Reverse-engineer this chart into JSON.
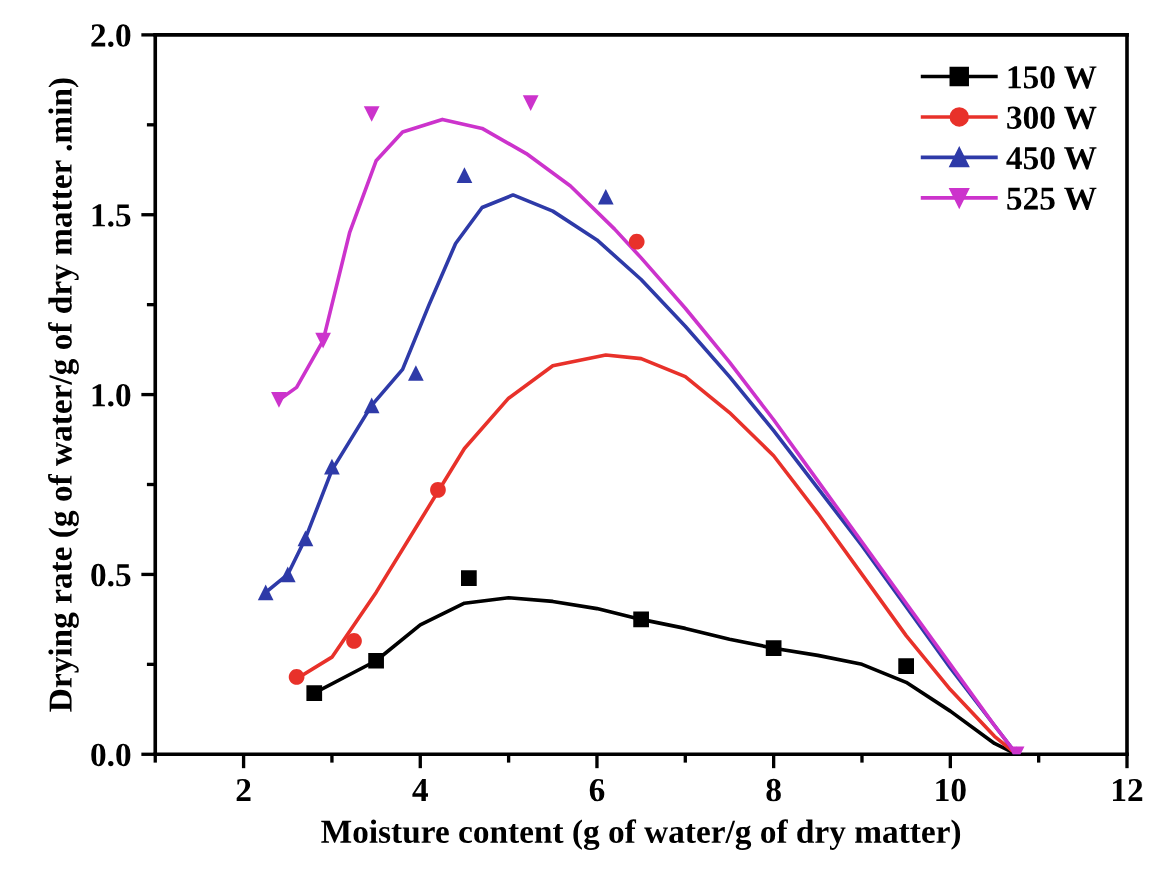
{
  "chart_data": {
    "type": "scatter",
    "xlabel": "Moisture content (g of water/g of dry matter)",
    "ylabel": "Drying rate (g of water/g of dry matter .min)",
    "xlim": [
      1,
      12
    ],
    "xticks": [
      2,
      4,
      6,
      8,
      10,
      12
    ],
    "ylim": [
      0,
      2.0
    ],
    "yticks": [
      {
        "value": 0,
        "label": "0.0"
      },
      {
        "value": 0.5,
        "label": "0.5"
      },
      {
        "value": 1.0,
        "label": "1.0"
      },
      {
        "value": 1.5,
        "label": "1.5"
      },
      {
        "value": 2.0,
        "label": "2.0"
      }
    ],
    "legend": "top right",
    "grid": false,
    "series": [
      {
        "name": "150 W",
        "marker": "square",
        "color": "#000000",
        "x": [
          2.8,
          3.5,
          4.55,
          6.5,
          8.0,
          9.5
        ],
        "values": [
          0.17,
          0.26,
          0.49,
          0.375,
          0.295,
          0.245
        ]
      },
      {
        "name": "300 W",
        "marker": "circle",
        "color": "#e8312a",
        "x": [
          2.6,
          3.25,
          4.2,
          6.45
        ],
        "values": [
          0.215,
          0.315,
          0.735,
          1.425
        ]
      },
      {
        "name": "450 W",
        "marker": "triangle",
        "color": "#2e3aa8",
        "x": [
          2.25,
          2.5,
          2.7,
          3.0,
          3.45,
          3.95,
          4.5,
          6.1,
          10.75
        ],
        "values": [
          0.45,
          0.5,
          0.6,
          0.8,
          0.97,
          1.06,
          1.61,
          1.55,
          0.0
        ]
      },
      {
        "name": "525 W",
        "marker": "triangle_down",
        "color": "#cc33cc",
        "x": [
          2.4,
          2.9,
          3.45,
          5.25,
          10.75
        ],
        "values": [
          0.985,
          1.15,
          1.78,
          1.81,
          0.0
        ]
      },
      {
        "type": "line",
        "color": "#000000",
        "x": [
          2.8,
          3.5,
          4.0,
          4.5,
          5.0,
          5.5,
          6.0,
          6.5,
          7.0,
          7.5,
          8.0,
          8.5,
          9.0,
          9.5,
          10.0,
          10.5,
          10.75
        ],
        "values": [
          0.17,
          0.26,
          0.36,
          0.42,
          0.435,
          0.425,
          0.405,
          0.375,
          0.35,
          0.32,
          0.295,
          0.275,
          0.25,
          0.2,
          0.12,
          0.03,
          0.0
        ]
      },
      {
        "type": "line",
        "color": "#e8312a",
        "x": [
          2.6,
          3.0,
          3.5,
          4.0,
          4.5,
          5.0,
          5.5,
          6.1,
          6.5,
          7.0,
          7.5,
          8.0,
          8.5,
          9.0,
          9.5,
          10.0,
          10.5,
          10.75
        ],
        "values": [
          0.21,
          0.27,
          0.45,
          0.65,
          0.85,
          0.99,
          1.08,
          1.11,
          1.1,
          1.05,
          0.95,
          0.83,
          0.67,
          0.5,
          0.33,
          0.18,
          0.05,
          0.0
        ]
      },
      {
        "type": "line",
        "color": "#2e3aa8",
        "x": [
          2.25,
          2.5,
          2.7,
          3.0,
          3.45,
          3.8,
          4.1,
          4.4,
          4.7,
          5.05,
          5.5,
          6.0,
          6.5,
          7.0,
          7.5,
          8.0,
          8.5,
          9.0,
          9.5,
          10.0,
          10.5,
          10.75
        ],
        "values": [
          0.45,
          0.5,
          0.6,
          0.79,
          0.97,
          1.07,
          1.25,
          1.42,
          1.52,
          1.555,
          1.51,
          1.43,
          1.32,
          1.19,
          1.05,
          0.9,
          0.74,
          0.58,
          0.41,
          0.24,
          0.08,
          0.0
        ]
      },
      {
        "type": "line",
        "color": "#cc33cc",
        "x": [
          2.4,
          2.6,
          2.9,
          3.2,
          3.5,
          3.8,
          4.25,
          4.7,
          5.2,
          5.7,
          6.2,
          6.5,
          7.0,
          7.5,
          8.0,
          8.5,
          9.0,
          9.5,
          10.0,
          10.5,
          10.75
        ],
        "values": [
          0.985,
          1.02,
          1.15,
          1.45,
          1.65,
          1.73,
          1.765,
          1.74,
          1.67,
          1.58,
          1.46,
          1.38,
          1.24,
          1.09,
          0.93,
          0.76,
          0.59,
          0.42,
          0.25,
          0.08,
          0.0
        ]
      }
    ]
  }
}
